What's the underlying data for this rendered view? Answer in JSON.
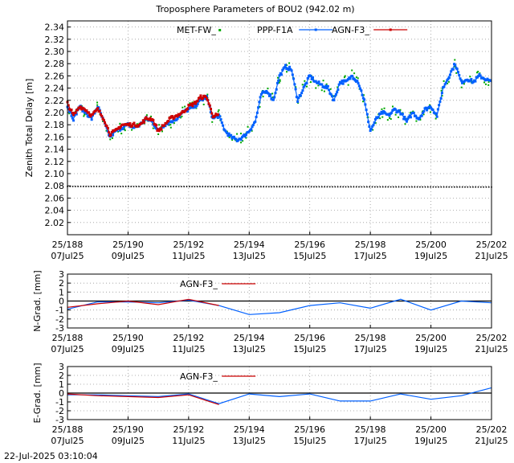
{
  "figure": {
    "title": "Troposphere Parameters of BOU2 (942.02 m)",
    "timestamp": "22-Jul-2025 03:10:04"
  },
  "colors": {
    "met": "#00aa00",
    "ppp": "#0060ff",
    "agn": "#cc0000",
    "baseline": "#000000",
    "grid": "#999999"
  },
  "chart_data": [
    {
      "type": "scatter",
      "ylabel": "Zenith Total Delay [m]",
      "xlim": [
        188,
        202
      ],
      "ylim": [
        2.0,
        2.35
      ],
      "grid": true,
      "legend_placement": "top",
      "x_ticks": [
        {
          "v": 188,
          "top": "25/188",
          "bottom": "07Jul25"
        },
        {
          "v": 190,
          "top": "25/190",
          "bottom": "09Jul25"
        },
        {
          "v": 192,
          "top": "25/192",
          "bottom": "11Jul25"
        },
        {
          "v": 194,
          "top": "25/194",
          "bottom": "13Jul25"
        },
        {
          "v": 196,
          "top": "25/196",
          "bottom": "15Jul25"
        },
        {
          "v": 198,
          "top": "25/198",
          "bottom": "17Jul25"
        },
        {
          "v": 200,
          "top": "25/200",
          "bottom": "19Jul25"
        },
        {
          "v": 202,
          "top": "25/202",
          "bottom": "21Jul25"
        }
      ],
      "y_ticks": [
        "2.02",
        "2.04",
        "2.06",
        "2.08",
        "2.10",
        "2.12",
        "2.14",
        "2.16",
        "2.18",
        "2.20",
        "2.22",
        "2.24",
        "2.26",
        "2.28",
        "2.30",
        "2.32",
        "2.34"
      ],
      "series": [
        {
          "name": "MET-FW_",
          "style": "dots",
          "color": "#00aa00",
          "x": [
            188.0,
            202.0
          ],
          "y": [
            2.079,
            2.078
          ]
        },
        {
          "name": "PPP-F1A",
          "style": "line-markers",
          "color": "#0060ff",
          "x": [
            188.0,
            188.2,
            188.4,
            188.6,
            188.8,
            189.0,
            189.2,
            189.4,
            189.6,
            189.8,
            190.0,
            190.2,
            190.4,
            190.6,
            190.8,
            191.0,
            191.2,
            191.4,
            191.6,
            191.8,
            192.0,
            192.2,
            192.4,
            192.6,
            192.8,
            193.0,
            193.2,
            193.4,
            193.6,
            193.8,
            194.0,
            194.2,
            194.4,
            194.6,
            194.8,
            195.0,
            195.2,
            195.4,
            195.6,
            195.8,
            196.0,
            196.2,
            196.4,
            196.6,
            196.8,
            197.0,
            197.2,
            197.4,
            197.6,
            197.8,
            198.0,
            198.2,
            198.4,
            198.6,
            198.8,
            199.0,
            199.2,
            199.4,
            199.6,
            199.8,
            200.0,
            200.2,
            200.4,
            200.6,
            200.8,
            201.0,
            201.2,
            201.4,
            201.6,
            201.8,
            202.0
          ],
          "y": [
            2.21,
            2.19,
            2.21,
            2.2,
            2.19,
            2.21,
            2.185,
            2.16,
            2.17,
            2.175,
            2.18,
            2.175,
            2.18,
            2.19,
            2.185,
            2.17,
            2.18,
            2.185,
            2.19,
            2.2,
            2.205,
            2.21,
            2.22,
            2.225,
            2.19,
            2.195,
            2.17,
            2.16,
            2.155,
            2.16,
            2.17,
            2.185,
            2.23,
            2.235,
            2.22,
            2.26,
            2.275,
            2.27,
            2.22,
            2.24,
            2.26,
            2.25,
            2.245,
            2.24,
            2.22,
            2.25,
            2.25,
            2.26,
            2.25,
            2.22,
            2.17,
            2.19,
            2.2,
            2.195,
            2.205,
            2.2,
            2.185,
            2.2,
            2.19,
            2.205,
            2.21,
            2.195,
            2.24,
            2.26,
            2.28,
            2.25,
            2.255,
            2.25,
            2.26,
            2.255,
            2.25
          ]
        },
        {
          "name": "AGN-F3_",
          "style": "line-markers",
          "color": "#cc0000",
          "x": [
            188.0,
            188.2,
            188.4,
            188.6,
            188.8,
            189.0,
            189.2,
            189.4,
            189.6,
            189.8,
            190.0,
            190.2,
            190.4,
            190.6,
            190.8,
            191.0,
            191.2,
            191.4,
            191.6,
            191.8,
            192.0,
            192.2,
            192.4,
            192.6,
            192.8,
            193.0
          ],
          "y": [
            2.215,
            2.195,
            2.21,
            2.205,
            2.195,
            2.205,
            2.19,
            2.165,
            2.17,
            2.18,
            2.18,
            2.18,
            2.18,
            2.19,
            2.19,
            2.17,
            2.18,
            2.19,
            2.195,
            2.2,
            2.21,
            2.215,
            2.225,
            2.225,
            2.195,
            2.195
          ]
        }
      ]
    },
    {
      "type": "line",
      "ylabel": "N-Grad. [mm]",
      "xlim": [
        188,
        202
      ],
      "ylim": [
        -3,
        3
      ],
      "grid": true,
      "legend_placement": "top",
      "x_ticks": [
        {
          "v": 188,
          "top": "25/188",
          "bottom": "07Jul25"
        },
        {
          "v": 190,
          "top": "25/190",
          "bottom": "09Jul25"
        },
        {
          "v": 192,
          "top": "25/192",
          "bottom": "11Jul25"
        },
        {
          "v": 194,
          "top": "25/194",
          "bottom": "13Jul25"
        },
        {
          "v": 196,
          "top": "25/196",
          "bottom": "15Jul25"
        },
        {
          "v": 198,
          "top": "25/198",
          "bottom": "17Jul25"
        },
        {
          "v": 200,
          "top": "25/200",
          "bottom": "19Jul25"
        },
        {
          "v": 202,
          "top": "25/202",
          "bottom": "21Jul25"
        }
      ],
      "y_ticks": [
        "-3",
        "-2",
        "-1",
        "0",
        "1",
        "2",
        "3"
      ],
      "series": [
        {
          "name": "PPP-F1A",
          "style": "line",
          "color": "#0060ff",
          "x": [
            188,
            189,
            190,
            191,
            192,
            193,
            194,
            195,
            196,
            197,
            198,
            199,
            200,
            201,
            202
          ],
          "y": [
            -0.9,
            -0.1,
            -0.1,
            -0.2,
            0.1,
            -0.5,
            -1.5,
            -1.3,
            -0.5,
            -0.2,
            -0.8,
            0.2,
            -1.0,
            0.0,
            -0.2
          ]
        },
        {
          "name": "AGN-F3_",
          "style": "line",
          "color": "#cc0000",
          "x": [
            188,
            189,
            190,
            191,
            192,
            193
          ],
          "y": [
            -0.7,
            -0.3,
            0.0,
            -0.4,
            0.2,
            -0.5
          ]
        }
      ]
    },
    {
      "type": "line",
      "ylabel": "E-Grad. [mm]",
      "xlim": [
        188,
        202
      ],
      "ylim": [
        -3,
        3
      ],
      "grid": true,
      "legend_placement": "top",
      "x_ticks": [
        {
          "v": 188,
          "top": "25/188",
          "bottom": "07Jul25"
        },
        {
          "v": 190,
          "top": "25/190",
          "bottom": "09Jul25"
        },
        {
          "v": 192,
          "top": "25/192",
          "bottom": "11Jul25"
        },
        {
          "v": 194,
          "top": "25/194",
          "bottom": "13Jul25"
        },
        {
          "v": 196,
          "top": "25/196",
          "bottom": "15Jul25"
        },
        {
          "v": 198,
          "top": "25/198",
          "bottom": "17Jul25"
        },
        {
          "v": 200,
          "top": "25/200",
          "bottom": "19Jul25"
        },
        {
          "v": 202,
          "top": "25/202",
          "bottom": "21Jul25"
        }
      ],
      "y_ticks": [
        "-3",
        "-2",
        "-1",
        "0",
        "1",
        "2",
        "3"
      ],
      "series": [
        {
          "name": "PPP-F1A",
          "style": "line",
          "color": "#0060ff",
          "x": [
            188,
            189,
            190,
            191,
            192,
            193,
            194,
            195,
            196,
            197,
            198,
            199,
            200,
            201,
            202
          ],
          "y": [
            -0.2,
            -0.2,
            -0.3,
            -0.4,
            -0.1,
            -1.2,
            -0.1,
            -0.4,
            -0.1,
            -0.9,
            -0.9,
            -0.1,
            -0.7,
            -0.3,
            0.6
          ]
        },
        {
          "name": "AGN-F3_",
          "style": "line",
          "color": "#cc0000",
          "x": [
            188,
            189,
            190,
            191,
            192,
            193
          ],
          "y": [
            -0.1,
            -0.3,
            -0.4,
            -0.5,
            -0.2,
            -1.3
          ]
        }
      ]
    }
  ]
}
